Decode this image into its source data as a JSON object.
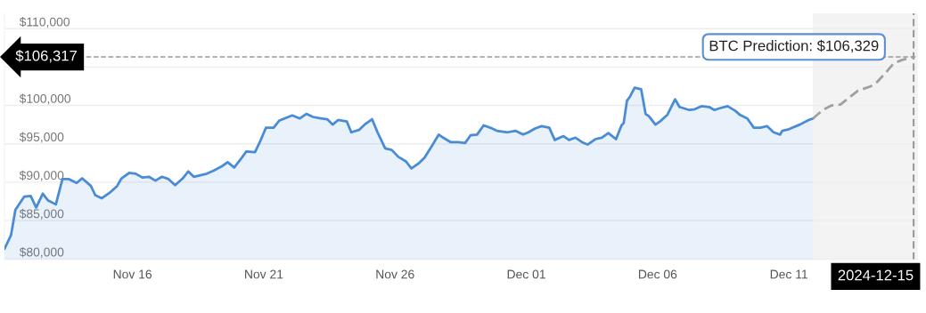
{
  "chart_data": {
    "type": "area",
    "xlim": [
      "2024-11-11T03:00",
      "2024-12-15T22:00"
    ],
    "xticks": [
      {
        "value": "2024-11-16",
        "label": "Nov 16"
      },
      {
        "value": "2024-11-21",
        "label": "Nov 21"
      },
      {
        "value": "2024-11-26",
        "label": "Nov 26"
      },
      {
        "value": "2024-12-01",
        "label": "Dec 01"
      },
      {
        "value": "2024-12-06",
        "label": "Dec 06"
      },
      {
        "value": "2024-12-11",
        "label": "Dec 11"
      }
    ],
    "ylim": [
      79900,
      112000
    ],
    "yticks": [
      {
        "value": 80000,
        "label": "$80,000"
      },
      {
        "value": 85000,
        "label": "$85,000"
      },
      {
        "value": 90000,
        "label": "$90,000"
      },
      {
        "value": 95000,
        "label": "$95,000"
      },
      {
        "value": 100000,
        "label": "$100,000"
      },
      {
        "value": 105000,
        "label": null
      },
      {
        "value": 110000,
        "label": "$110,000"
      }
    ],
    "grid": "y",
    "series": [
      {
        "color": "#4a8bd6",
        "line_style": "solid",
        "x": [
          "2024-11-11T03:00",
          "2024-11-11T09:00",
          "2024-11-11T13:00",
          "2024-11-11T21:00",
          "2024-11-12T03:00",
          "2024-11-12T08:00",
          "2024-11-12T14:00",
          "2024-11-12T19:00",
          "2024-11-13T02:00",
          "2024-11-13T08:00",
          "2024-11-13T14:00",
          "2024-11-13T21:00",
          "2024-11-14T02:00",
          "2024-11-14T10:00",
          "2024-11-14T14:00",
          "2024-11-14T20:00",
          "2024-11-15T03:00",
          "2024-11-15T10:00",
          "2024-11-15T14:00",
          "2024-11-15T21:00",
          "2024-11-16T03:00",
          "2024-11-16T09:00",
          "2024-11-16T15:00",
          "2024-11-16T21:00",
          "2024-11-17T03:00",
          "2024-11-17T09:00",
          "2024-11-17T15:00",
          "2024-11-17T22:00",
          "2024-11-18T03:00",
          "2024-11-18T08:00",
          "2024-11-18T20:00",
          "2024-11-19T02:00",
          "2024-11-19T09:00",
          "2024-11-19T15:00",
          "2024-11-19T21:00",
          "2024-11-20T03:00",
          "2024-11-20T08:00",
          "2024-11-20T16:00",
          "2024-11-20T21:00",
          "2024-11-21T02:00",
          "2024-11-21T09:00",
          "2024-11-21T14:00",
          "2024-11-21T19:00",
          "2024-11-22T02:00",
          "2024-11-22T09:00",
          "2024-11-22T15:00",
          "2024-11-22T21:00",
          "2024-11-23T04:00",
          "2024-11-23T10:00",
          "2024-11-23T15:00",
          "2024-11-23T20:00",
          "2024-11-24T04:00",
          "2024-11-24T08:00",
          "2024-11-24T15:00",
          "2024-11-24T21:00",
          "2024-11-25T03:00",
          "2024-11-25T08:00",
          "2024-11-25T15:00",
          "2024-11-25T21:00",
          "2024-11-26T03:00",
          "2024-11-26T10:00",
          "2024-11-26T15:00",
          "2024-11-26T22:00",
          "2024-11-27T03:00",
          "2024-11-27T10:00",
          "2024-11-27T16:00",
          "2024-11-27T20:00",
          "2024-11-28T03:00",
          "2024-11-28T10:00",
          "2024-11-28T16:00",
          "2024-11-28T21:00",
          "2024-11-29T03:00",
          "2024-11-29T09:00",
          "2024-11-29T15:00",
          "2024-11-29T21:00",
          "2024-11-30T07:00",
          "2024-11-30T14:00",
          "2024-11-30T21:00",
          "2024-12-01T02:00",
          "2024-12-01T08:00",
          "2024-12-01T14:00",
          "2024-12-01T21:00",
          "2024-12-02T02:00",
          "2024-12-02T10:00",
          "2024-12-02T15:00",
          "2024-12-02T21:00",
          "2024-12-03T03:00",
          "2024-12-03T08:00",
          "2024-12-03T15:00",
          "2024-12-03T21:00",
          "2024-12-04T03:00",
          "2024-12-04T10:00",
          "2024-12-04T15:00",
          "2024-12-04T17:00",
          "2024-12-04T20:00",
          "2024-12-04T23:00",
          "2024-12-05T03:00",
          "2024-12-05T09:00",
          "2024-12-05T13:00",
          "2024-12-05T16:00",
          "2024-12-05T22:00",
          "2024-12-06T03:00",
          "2024-12-06T09:00",
          "2024-12-06T16:00",
          "2024-12-06T20:00",
          "2024-12-07T05:00",
          "2024-12-07T10:00",
          "2024-12-07T16:00",
          "2024-12-07T23:00",
          "2024-12-08T04:00",
          "2024-12-08T08:00",
          "2024-12-08T16:00",
          "2024-12-08T23:00",
          "2024-12-09T03:00",
          "2024-12-09T10:00",
          "2024-12-09T16:00",
          "2024-12-09T22:00",
          "2024-12-10T04:00",
          "2024-12-10T10:00",
          "2024-12-10T16:00",
          "2024-12-10T18:00",
          "2024-12-11T00:00",
          "2024-12-11T10:00",
          "2024-12-11T18:00",
          "2024-12-11T22:00"
        ],
        "values": [
          81300,
          83100,
          86400,
          88100,
          88200,
          86700,
          88500,
          87600,
          87100,
          90400,
          90400,
          89900,
          90500,
          89500,
          88300,
          87900,
          88600,
          89500,
          90500,
          91200,
          91100,
          90600,
          90700,
          90200,
          90700,
          90400,
          89600,
          90500,
          91400,
          90700,
          91100,
          91500,
          92000,
          92600,
          91900,
          93000,
          94000,
          93900,
          95400,
          97100,
          97100,
          98000,
          98300,
          98700,
          98300,
          98900,
          98500,
          98300,
          98200,
          97500,
          98100,
          97900,
          96500,
          96800,
          97600,
          98200,
          96500,
          94400,
          94200,
          93300,
          92700,
          91800,
          92500,
          93200,
          94800,
          96200,
          95800,
          95200,
          95200,
          95100,
          96100,
          96200,
          97400,
          97100,
          96700,
          96500,
          96700,
          96200,
          96500,
          97000,
          97300,
          97100,
          95500,
          96000,
          95500,
          95800,
          95200,
          94900,
          95600,
          95800,
          96400,
          95600,
          97400,
          97700,
          100600,
          101200,
          102300,
          102100,
          98900,
          98600,
          97500,
          98000,
          98800,
          100800,
          99800,
          99400,
          99500,
          99900,
          99800,
          99400,
          99600,
          99900,
          99300,
          98800,
          98300,
          97100,
          97100,
          97300,
          96500,
          96200,
          96700,
          96900,
          97500,
          98100,
          98300
        ]
      },
      {
        "type": "line",
        "color": "#a0a0a0",
        "line_style": "dashed",
        "x": [
          "2024-12-11T22:00",
          "2024-12-12T07:00",
          "2024-12-12T15:00",
          "2024-12-12T23:00",
          "2024-12-13T07:00",
          "2024-12-13T15:00",
          "2024-12-14T03:00",
          "2024-12-14T09:00",
          "2024-12-14T18:00",
          "2024-12-15T00:00",
          "2024-12-15T07:00",
          "2024-12-15T18:00"
        ],
        "values": [
          98300,
          99400,
          100000,
          100100,
          101000,
          101900,
          102500,
          103100,
          104500,
          105500,
          105900,
          106329
        ]
      }
    ],
    "bands": [
      {
        "axis": "x",
        "from": "2024-12-11T22:00",
        "to": "2024-12-15T22:00",
        "label": null,
        "color": "#f3f3f3"
      }
    ],
    "ref_lines": [
      {
        "axis": "y",
        "value": 106317,
        "label": "$106,317",
        "color": "#999999",
        "line_style": "dashed"
      },
      {
        "axis": "x",
        "value": "2024-12-15T18:00",
        "label": "2024-12-15",
        "color": "#999999",
        "line_style": "dashed"
      }
    ],
    "annotations": [
      {
        "text": "BTC Prediction: $106,329",
        "x": "2024-12-15T18:00",
        "y": 106329
      }
    ],
    "legend": false,
    "marker": "none"
  }
}
